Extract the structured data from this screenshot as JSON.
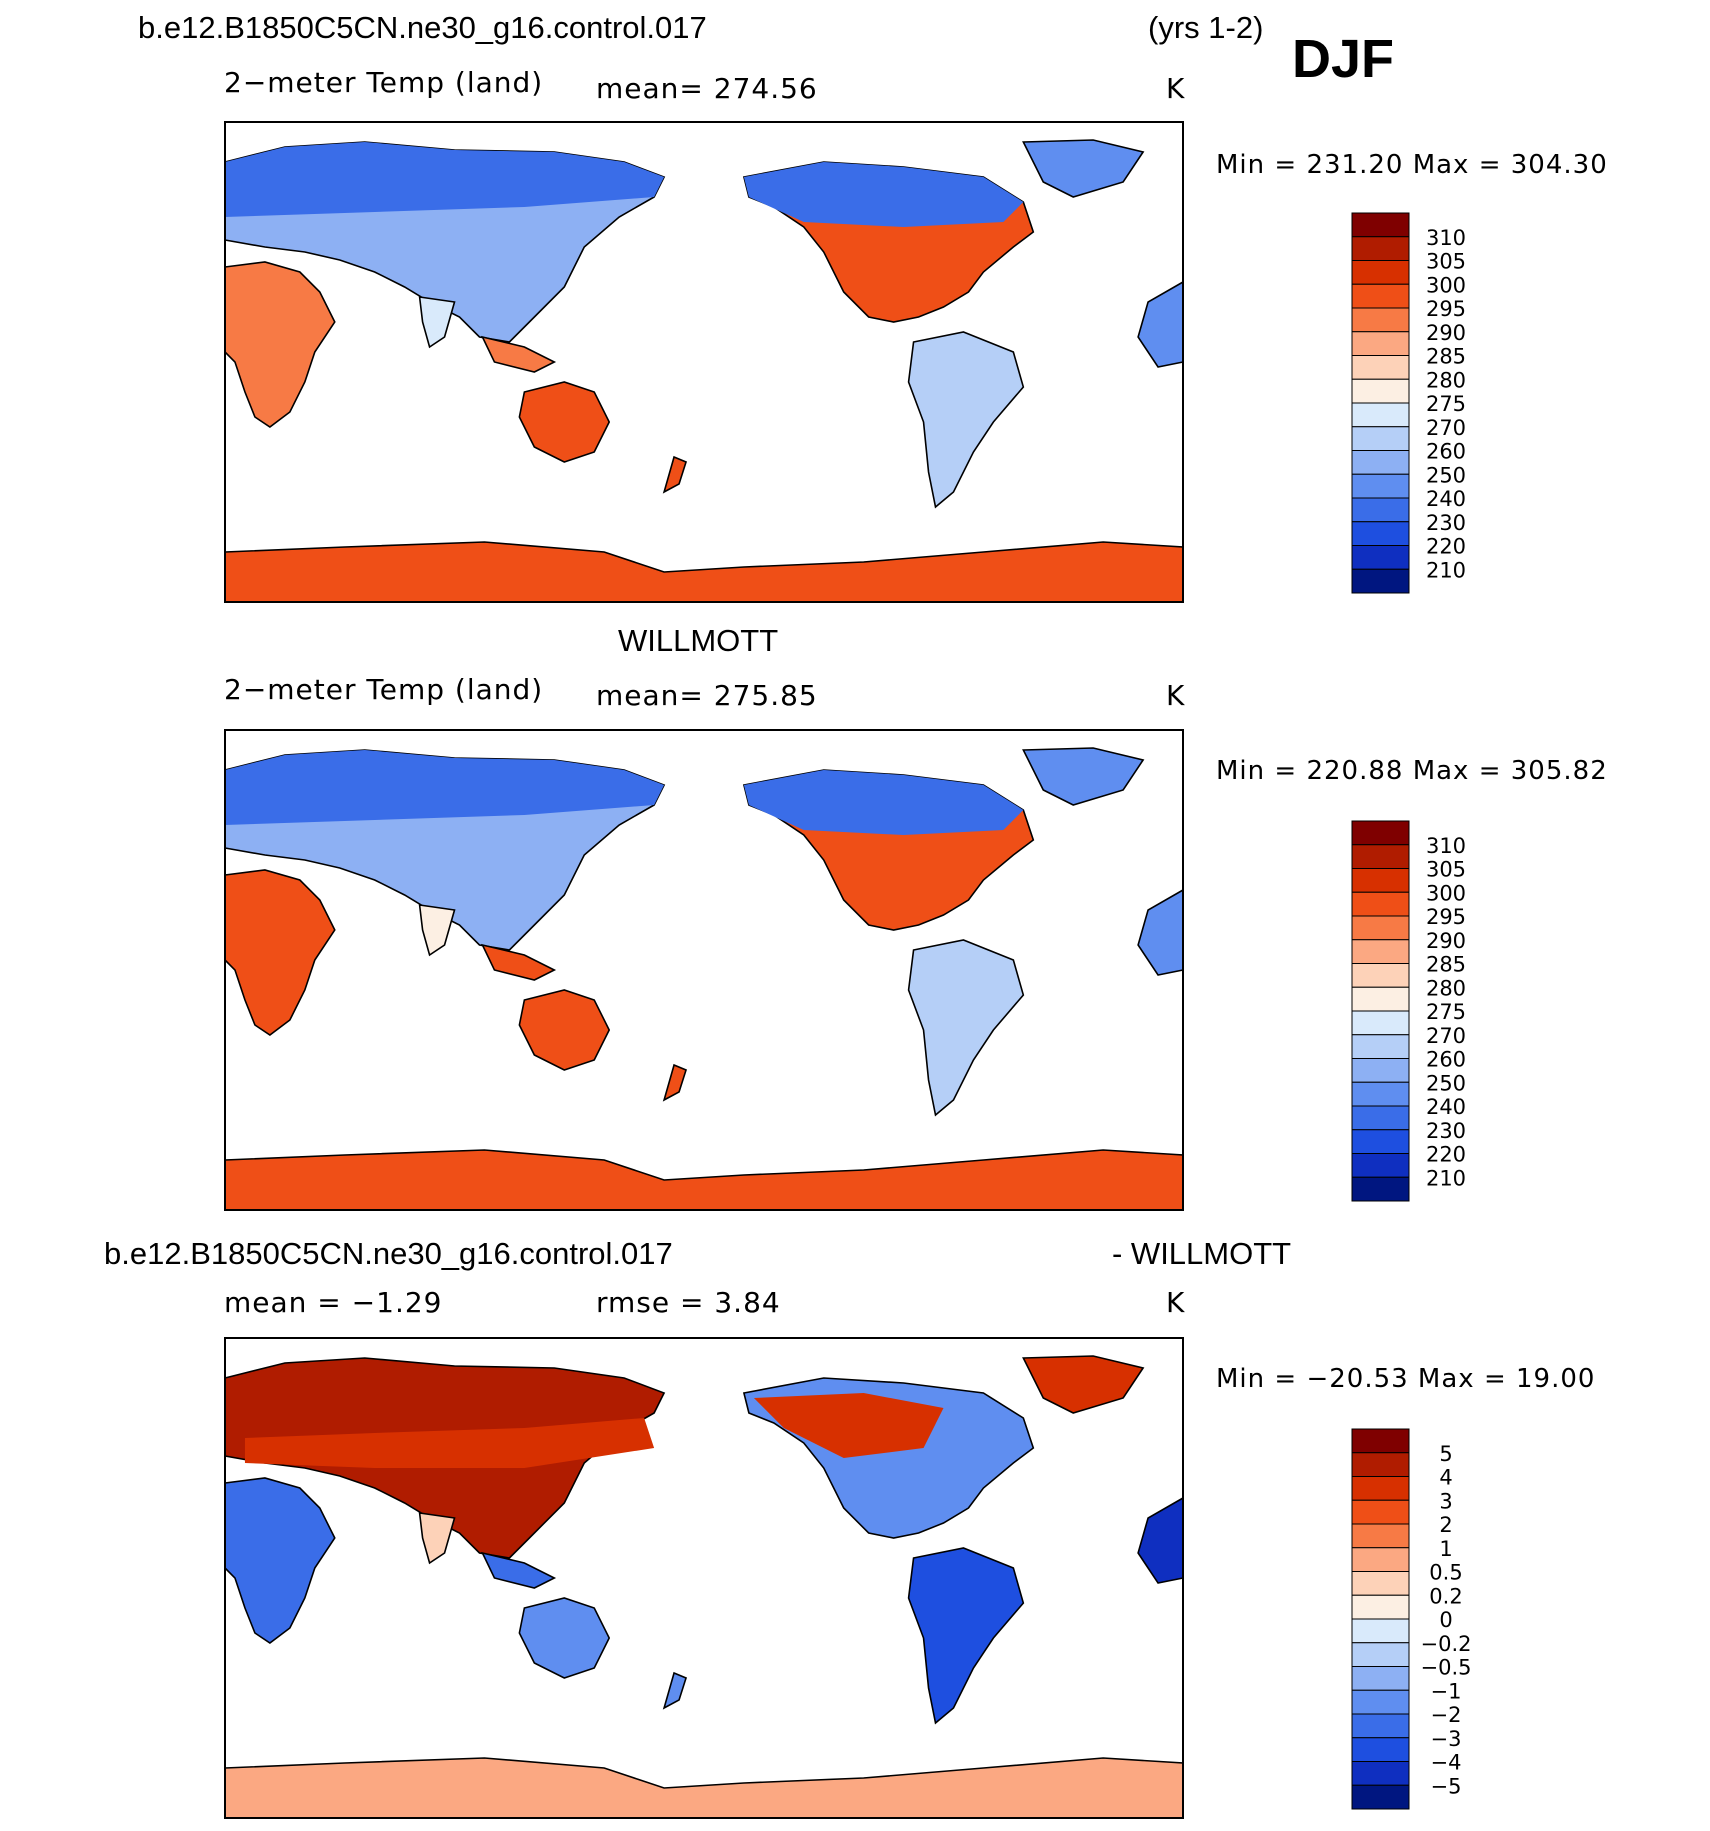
{
  "header": {
    "case_name": "b.e12.B1850C5CN.ne30_g16.control.017",
    "years": "(yrs 1-2)",
    "season": "DJF"
  },
  "panels": [
    {
      "id": "model",
      "title": "",
      "variable": "2−meter Temp (land)",
      "stat": "mean= 274.56",
      "units": "K",
      "minmax": "Min = 231.20 Max = 304.30",
      "scale": "abs"
    },
    {
      "id": "obs",
      "title": "WILLMOTT",
      "variable": "2−meter Temp (land)",
      "stat": "mean= 275.85",
      "units": "K",
      "minmax": "Min = 220.88 Max = 305.82",
      "scale": "abs"
    },
    {
      "id": "diff",
      "title_left": "b.e12.B1850C5CN.ne30_g16.control.017",
      "title_right": "- WILLMOTT",
      "variable": "mean = −1.29",
      "stat": "rmse = 3.84",
      "units": "K",
      "minmax": "Min = −20.53 Max = 19.00",
      "scale": "diff"
    }
  ],
  "colorbars": {
    "abs_labels": [
      "310",
      "305",
      "300",
      "295",
      "290",
      "285",
      "280",
      "275",
      "270",
      "260",
      "250",
      "240",
      "230",
      "220",
      "210"
    ],
    "diff_labels": [
      "5",
      "4",
      "3",
      "2",
      "1",
      "0.5",
      "0.2",
      "0",
      "−0.2",
      "−0.5",
      "−1",
      "−2",
      "−3",
      "−4",
      "−5"
    ],
    "colors": [
      "#7f0000",
      "#b01c00",
      "#d73000",
      "#ef4f17",
      "#f77a45",
      "#fba882",
      "#fdd2b8",
      "#fcefe3",
      "#d9eafb",
      "#b5cff7",
      "#8db0f3",
      "#5f8ef0",
      "#3a6de8",
      "#1e4fe0",
      "#0f2fc0",
      "#001680"
    ]
  },
  "map_colors": {
    "land_outline": "#000000",
    "ocean": "#ffffff"
  }
}
